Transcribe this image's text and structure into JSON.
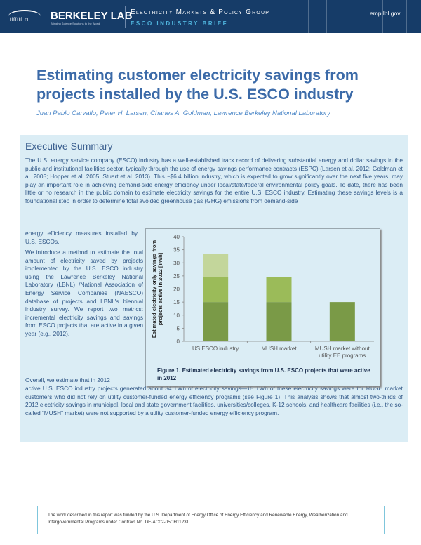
{
  "header": {
    "brand": "BERKELEY LAB",
    "tagline": "Bringing Science Solutions to the World",
    "group": "Electricity Markets & Policy Group",
    "brief": "ESCO INDUSTRY BRIEF",
    "site": "emp.lbl.gov",
    "bg_color": "#163c68"
  },
  "title": "Estimating customer electricity savings from projects installed by the U.S. ESCO industry",
  "authors": "Juan Pablo Carvallo, Peter H. Larsen, Charles A. Goldman, Lawrence Berkeley National Laboratory",
  "summary": {
    "heading": "Executive Summary",
    "p1": "The U.S. energy service company (ESCO) industry has a well-established track record of delivering substantial energy and dollar savings in the public and institutional facilities sector, typically through the use of energy savings performance contracts (ESPC) (Larsen et al. 2012; Goldman et al. 2005; Hopper et al. 2005, Stuart et al. 2013). This ~$6.4 billion industry, which is expected to grow significantly over the next five years, may play an important role in achieving demand-side energy efficiency under local/state/federal environmental policy goals. To date, there has been little or no research in the public domain to estimate electricity savings for the entire U.S. ESCO industry. Estimating these savings levels is a foundational step in order to determine total avoided greenhouse gas (GHG) emissions from demand-side",
    "p1b": "energy efficiency measures installed by U.S. ESCOs.",
    "p2": "We introduce a method to estimate the total amount of electricity saved by projects implemented by the U.S. ESCO industry using the Lawrence Berkeley National Laboratory (LBNL) /National Association of Energy Service Companies (NAESCO) database of projects and LBNL's biennial industry survey. We report two metrics: incremental electricity savings and savings from ESCO projects that are active in a given year (e.g., 2012).",
    "p3": "Overall, we estimate that in 2012",
    "p4": "active U.S. ESCO industry projects generated about 34 TWh of electricity savings—15 TWh of these electricity savings were for MUSH market customers who did not rely on utility customer-funded energy efficiency programs (see Figure 1). This analysis shows that almost two-thirds of 2012 electricity savings in municipal, local and state government facilities, universities/colleges, K-12 schools, and healthcare facilities (i.e., the so-called “MUSH” market) were not supported by a utility customer-funded energy efficiency program."
  },
  "figure": {
    "caption": "Figure 1. Estimated electricity savings from U.S. ESCO projects that were active in 2012"
  },
  "chart_data": {
    "type": "bar",
    "stacked": true,
    "categories": [
      "US ESCO industry",
      "MUSH market",
      "MUSH market without utility EE programs"
    ],
    "category_lines": [
      [
        "US ESCO industry"
      ],
      [
        "MUSH market"
      ],
      [
        "MUSH market without",
        "utility EE programs"
      ]
    ],
    "series": [
      {
        "values": [
          15,
          15,
          15
        ],
        "color": "#7a9a47"
      },
      {
        "values": [
          9.5,
          9.5,
          0
        ],
        "color": "#9bbb59"
      },
      {
        "values": [
          9,
          0,
          0
        ],
        "color": "#c3d69b"
      }
    ],
    "ylabel": "Estimated electricity only savings from projects active in 2012 [TWh]",
    "ylim": [
      0,
      40
    ],
    "yticks": [
      0,
      5,
      10,
      15,
      20,
      25,
      30,
      35,
      40
    ],
    "grid": false,
    "legend": "none"
  },
  "footer": "The work described in this report was funded by the U.S. Department of Energy Office of Energy Efficiency and Renewable Energy, Weatherization and Intergovernmental Programs under Contract No. DE-AC02-05CH11231."
}
